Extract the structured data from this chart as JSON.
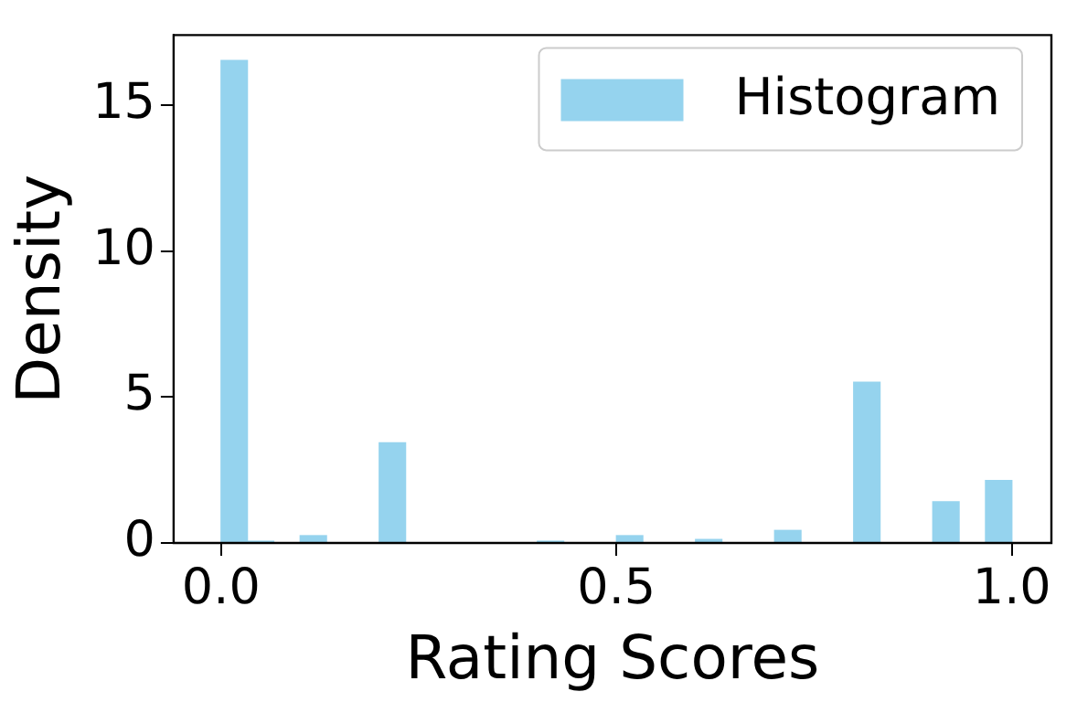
{
  "chart_data": {
    "type": "histogram",
    "xlabel": "Rating Scores",
    "ylabel": "Density",
    "bins": [
      0,
      0.0333,
      0.0667,
      0.1,
      0.1333,
      0.1667,
      0.2,
      0.2333,
      0.2667,
      0.3,
      0.3333,
      0.3667,
      0.4,
      0.4333,
      0.4667,
      0.5,
      0.5333,
      0.5667,
      0.6,
      0.6333,
      0.6667,
      0.7,
      0.7333,
      0.7667,
      0.8,
      0.8333,
      0.8667,
      0.9,
      0.9333,
      0.9667,
      1
    ],
    "series": [
      {
        "name": "Histogram",
        "color": "#95d3ee",
        "values": [
          16.53,
          0.06,
          0,
          0.25,
          0,
          0,
          3.43,
          0,
          0,
          0,
          0,
          0,
          0.06,
          0,
          0,
          0.25,
          0,
          0,
          0.12,
          0,
          0,
          0.43,
          0,
          0,
          5.51,
          0,
          0,
          1.41,
          0,
          2.14
        ]
      }
    ],
    "xlim": [
      -0.06,
      1.05
    ],
    "xticks": [
      {
        "value": 0,
        "label": "0.0"
      },
      {
        "value": 0.5,
        "label": "0.5"
      },
      {
        "value": 1,
        "label": "1.0"
      }
    ],
    "ylim": [
      0,
      17.4
    ],
    "yticks": [
      0,
      5,
      10,
      15
    ],
    "grid": false,
    "legend": "top right"
  }
}
